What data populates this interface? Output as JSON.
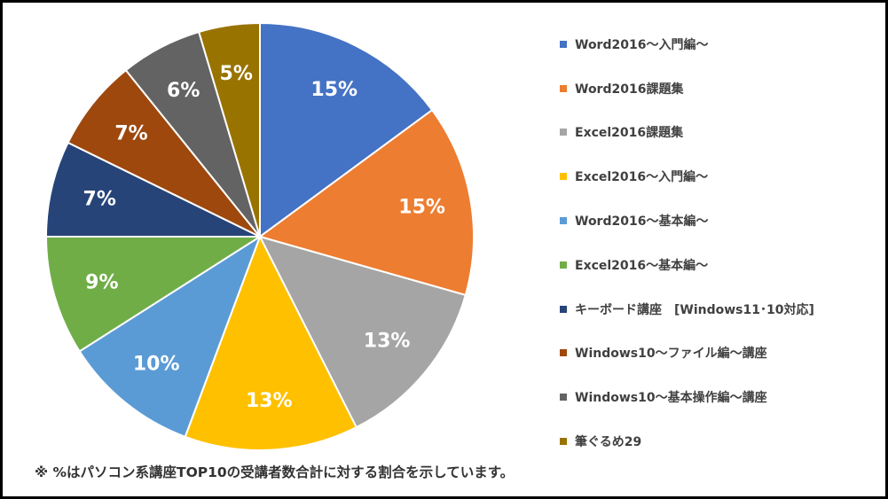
{
  "chart_data": {
    "type": "pie",
    "title": "",
    "categories": [
      "Word2016～入門編～",
      "Word2016課題集",
      "Excel2016課題集",
      "Excel2016～入門編～",
      "Word2016～基本編～",
      "Excel2016～基本編～",
      "キーボード講座　[Windows11･10対応]",
      "Windows10～ファイル編～講座",
      "Windows10～基本操作編～講座",
      "筆ぐるめ29"
    ],
    "values": [
      15.2,
      14.8,
      13.4,
      13.4,
      10.5,
      9.2,
      7.4,
      7.1,
      6.3,
      4.7
    ],
    "labels": [
      "15%",
      "15%",
      "13%",
      "13%",
      "10%",
      "9%",
      "7%",
      "7%",
      "6%",
      "5%"
    ],
    "colors": [
      "#4472C4",
      "#ED7D31",
      "#A5A5A5",
      "#FFC000",
      "#5B9BD5",
      "#70AD47",
      "#264478",
      "#9E480E",
      "#636363",
      "#997300"
    ],
    "legend_position": "right",
    "start_angle": "12 o'clock, clockwise"
  },
  "footnote": "※ %はパソコン系講座TOP10の受講者数合計に対する割合を示しています。"
}
